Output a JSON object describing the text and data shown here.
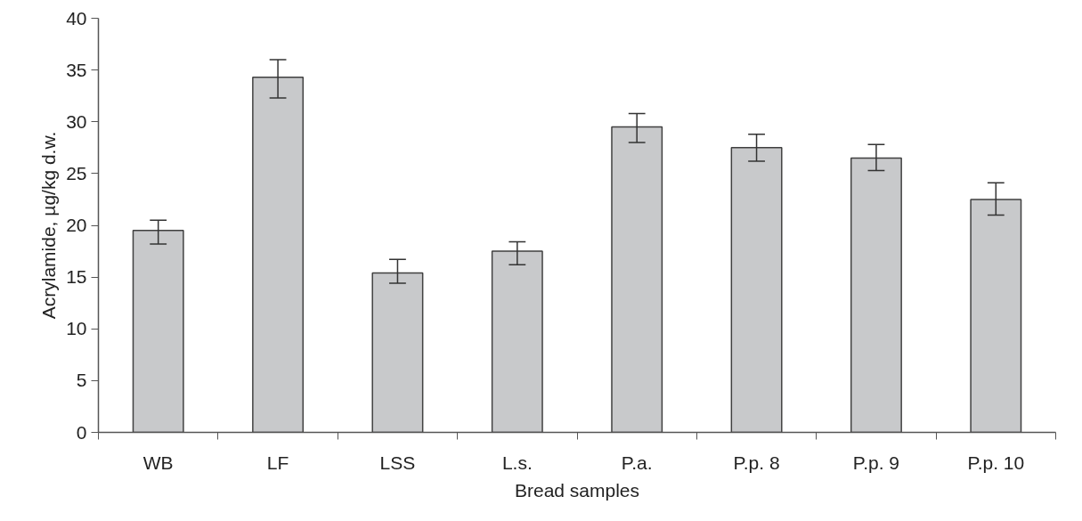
{
  "chart_data": {
    "type": "bar",
    "xlabel": "Bread samples",
    "ylabel": "Acrylamide, µg/kg d.w.",
    "categories": [
      "WB",
      "LF",
      "LSS",
      "L.s.",
      "P.a.",
      "P.p. 8",
      "P.p. 9",
      "P.p. 10"
    ],
    "values": [
      19.5,
      34.3,
      15.4,
      17.5,
      29.5,
      27.5,
      26.5,
      22.5
    ],
    "errors": [
      [
        18.2,
        20.5
      ],
      [
        32.3,
        36.0
      ],
      [
        14.4,
        16.7
      ],
      [
        16.2,
        18.4
      ],
      [
        28.0,
        30.8
      ],
      [
        26.2,
        28.8
      ],
      [
        25.3,
        27.8
      ],
      [
        21.0,
        24.1
      ]
    ],
    "color": "#c8c9cb",
    "ylim": [
      0,
      40
    ],
    "yticks": [
      0,
      5,
      10,
      15,
      20,
      25,
      30,
      35,
      40
    ],
    "grid": false
  }
}
